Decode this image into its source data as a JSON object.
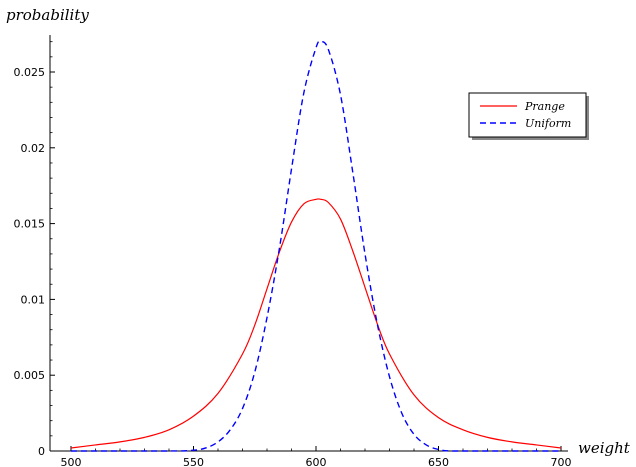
{
  "chart_data": {
    "type": "line",
    "xlabel": "weight",
    "ylabel": "probability",
    "xlim": [
      498,
      702
    ],
    "ylim": [
      0,
      0.0275
    ],
    "x_ticks": [
      500,
      550,
      600,
      650,
      700
    ],
    "x_tick_labels": [
      "500",
      "550",
      "600",
      "650",
      "700"
    ],
    "y_ticks": [
      0,
      0.005,
      0.01,
      0.015,
      0.02,
      0.025
    ],
    "y_tick_labels": [
      "0",
      "0.005",
      "0.01",
      "0.015",
      "0.02",
      "0.025"
    ],
    "grid": false,
    "legend_position": "top-right",
    "series": [
      {
        "name": "Prange",
        "color": "#ff0000",
        "dash": "solid",
        "x": [
          500,
          510,
          520,
          530,
          540,
          550,
          560,
          570,
          575,
          580,
          585,
          590,
          595,
          600,
          602,
          605,
          610,
          615,
          620,
          625,
          630,
          640,
          650,
          660,
          670,
          680,
          690,
          700
        ],
        "y": [
          0.0002,
          0.0004,
          0.0006,
          0.0009,
          0.0014,
          0.0023,
          0.0038,
          0.0064,
          0.0083,
          0.0107,
          0.0131,
          0.0151,
          0.0163,
          0.0166,
          0.0166,
          0.0164,
          0.0153,
          0.0132,
          0.0108,
          0.0084,
          0.0064,
          0.0037,
          0.0022,
          0.0014,
          0.0009,
          0.0006,
          0.0004,
          0.0002
        ]
      },
      {
        "name": "Uniform",
        "color": "#0000ff",
        "dash": "dashed",
        "x": [
          500,
          540,
          550,
          555,
          560,
          565,
          570,
          575,
          580,
          585,
          590,
          595,
          600,
          602,
          605,
          610,
          615,
          620,
          625,
          630,
          635,
          640,
          645,
          650,
          655,
          665,
          700
        ],
        "y": [
          0,
          0,
          5e-05,
          0.0002,
          0.0006,
          0.0014,
          0.0028,
          0.0052,
          0.0088,
          0.0133,
          0.0186,
          0.0236,
          0.0266,
          0.027,
          0.0265,
          0.0235,
          0.0184,
          0.013,
          0.0084,
          0.0049,
          0.0025,
          0.0011,
          0.0004,
          0.0001,
          0,
          0,
          0
        ]
      }
    ]
  }
}
